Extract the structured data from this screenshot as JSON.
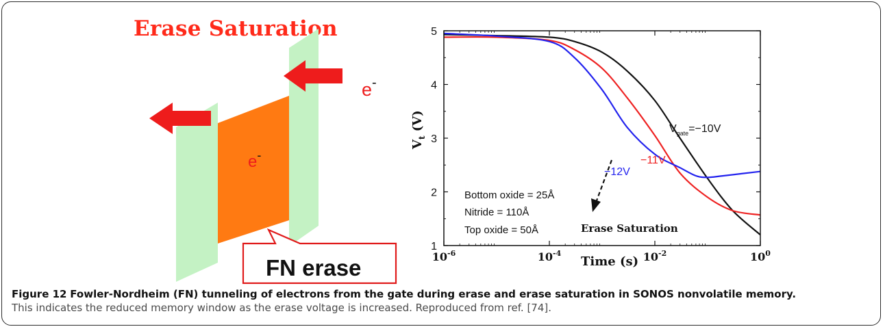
{
  "diagram": {
    "title": "Erase Saturation",
    "electron_top": "e",
    "electron_mid": "e",
    "electron_sup": "-",
    "callout": "FN erase",
    "colors": {
      "arrow": "#ee1c1c",
      "trap_layer": "#ff7a12",
      "oxide": "#c4f2c4",
      "title": "#ff2a1a"
    }
  },
  "chart_data": {
    "type": "line",
    "xscale": "log",
    "xlim": [
      1e-06,
      1
    ],
    "ylim": [
      1,
      5
    ],
    "xlabel": "Time (s)",
    "ylabel_main": "V",
    "ylabel_sub": "t",
    "ylabel_unit": " (V)",
    "x_ticks": [
      {
        "value": 1e-06,
        "base": "10",
        "exp": "-6"
      },
      {
        "value": 0.0001,
        "base": "10",
        "exp": "-4"
      },
      {
        "value": 0.01,
        "base": "10",
        "exp": "-2"
      },
      {
        "value": 1,
        "base": "10",
        "exp": "0"
      }
    ],
    "y_ticks": [
      "1",
      "2",
      "3",
      "4",
      "5"
    ],
    "series": [
      {
        "name": "Vgate=-10V",
        "color": "#111111",
        "x": [
          1e-06,
          1e-05,
          0.0001,
          0.0003,
          0.001,
          0.003,
          0.01,
          0.03,
          0.1,
          0.3,
          1
        ],
        "y": [
          4.93,
          4.91,
          4.88,
          4.8,
          4.6,
          4.25,
          3.7,
          3.0,
          2.25,
          1.65,
          1.2
        ]
      },
      {
        "name": "-11V",
        "color": "#ee2222",
        "x": [
          1e-06,
          1e-05,
          0.0001,
          0.0003,
          0.001,
          0.003,
          0.01,
          0.03,
          0.1,
          0.3,
          1
        ],
        "y": [
          4.88,
          4.88,
          4.82,
          4.65,
          4.3,
          3.75,
          3.05,
          2.35,
          1.9,
          1.65,
          1.57
        ]
      },
      {
        "name": "-12V",
        "color": "#2222ee",
        "x": [
          1e-06,
          1e-05,
          0.0001,
          0.0003,
          0.001,
          0.003,
          0.01,
          0.03,
          0.06,
          0.1,
          0.2,
          1
        ],
        "y": [
          4.95,
          4.9,
          4.8,
          4.5,
          3.9,
          3.2,
          2.7,
          2.45,
          2.3,
          2.27,
          2.3,
          2.38
        ]
      }
    ],
    "annotations": {
      "vgate_prefix": "V",
      "vgate_sub": "gate",
      "vgate_suffix": "=−10V",
      "v11": "−11V",
      "v12": "−12V",
      "params": [
        "Bottom oxide = 25Å",
        "Nitride = 110Å",
        "Top oxide = 50Å"
      ],
      "saturation": "Erase Saturation"
    }
  },
  "caption": {
    "label": "Figure 12",
    "title": "Fowler-Nordheim (FN) tunneling of electrons from the gate during erase and erase saturation in SONOS nonvolatile memory.",
    "body": "This indicates the reduced memory window as the erase voltage is increased. Reproduced from ref. [74]."
  }
}
